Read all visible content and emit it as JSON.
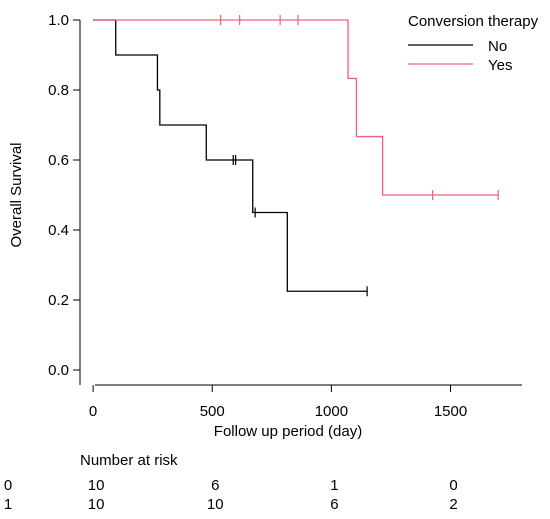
{
  "chart_data": {
    "type": "line",
    "step": true,
    "xlabel": "Follow up period (day)",
    "ylabel": "Overall Survival",
    "xlim": [
      -55,
      1800
    ],
    "ylim": [
      0.0,
      1.0
    ],
    "x_ticks": [
      0,
      500,
      1000,
      1500
    ],
    "y_ticks": [
      0.0,
      0.2,
      0.4,
      0.6,
      0.8,
      1.0
    ],
    "x_tick_labels": [
      "0",
      "500",
      "1000",
      "1500"
    ],
    "y_tick_labels": [
      "0.0",
      "0.2",
      "0.4",
      "0.6",
      "0.8",
      "1.0"
    ],
    "legend": {
      "title": "Conversion therapy",
      "position": "top-right",
      "entries": [
        "No",
        "Yes"
      ]
    },
    "series": [
      {
        "name": "No",
        "color": "#000000",
        "steps": [
          [
            0,
            1.0
          ],
          [
            95,
            0.9
          ],
          [
            270,
            0.8
          ],
          [
            280,
            0.7
          ],
          [
            475,
            0.6
          ],
          [
            670,
            0.45
          ],
          [
            815,
            0.225
          ],
          [
            1150,
            0.225
          ]
        ],
        "censored": [
          [
            588,
            0.6
          ],
          [
            598,
            0.6
          ],
          [
            680,
            0.45
          ],
          [
            1150,
            0.225
          ]
        ]
      },
      {
        "name": "Yes",
        "color": "#f0607a",
        "steps": [
          [
            0,
            1.0
          ],
          [
            1070,
            0.833
          ],
          [
            1105,
            0.667
          ],
          [
            1215,
            0.5
          ],
          [
            1700,
            0.5
          ]
        ],
        "censored": [
          [
            535,
            1.0
          ],
          [
            615,
            1.0
          ],
          [
            785,
            1.0
          ],
          [
            860,
            1.0
          ],
          [
            1425,
            0.5
          ],
          [
            1700,
            0.5
          ]
        ]
      }
    ],
    "risk_table": {
      "title": "Number at risk",
      "x": [
        0,
        500,
        1000,
        1500
      ],
      "rows": [
        {
          "label": "0",
          "counts": [
            "10",
            "6",
            "1",
            "0"
          ]
        },
        {
          "label": "1",
          "counts": [
            "10",
            "10",
            "6",
            "2"
          ]
        }
      ]
    }
  }
}
